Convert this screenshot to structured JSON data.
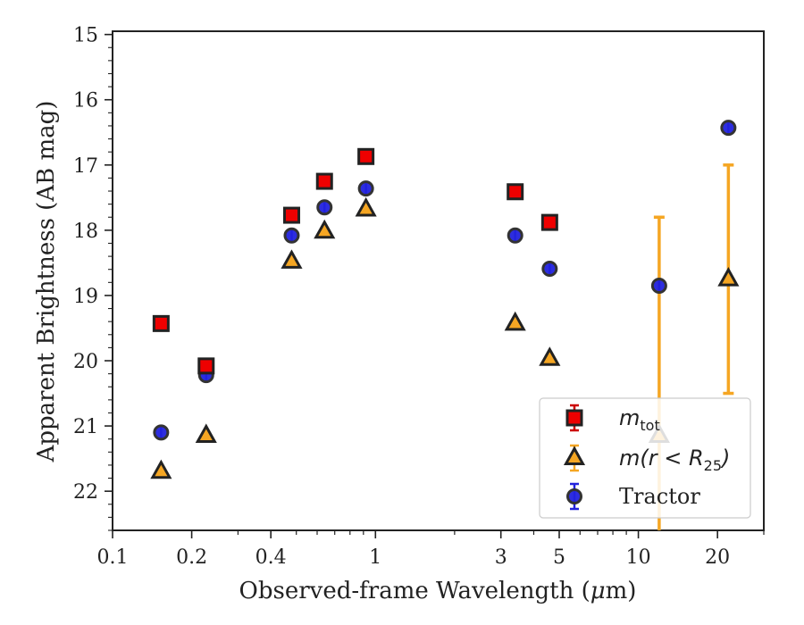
{
  "chart_data": {
    "type": "scatter",
    "title": "",
    "xlabel_main": "Observed-frame Wavelength (",
    "xlabel_unit": "μ",
    "xlabel_unit2": "m)",
    "ylabel": "Apparent Brightness (AB mag)",
    "xscale": "log",
    "xlim": [
      0.1,
      30
    ],
    "ylim": [
      22.6,
      14.95
    ],
    "y_inverted": true,
    "x_ticks": [
      {
        "value": 0.1,
        "label": "0.1"
      },
      {
        "value": 0.2,
        "label": "0.2"
      },
      {
        "value": 0.4,
        "label": "0.4"
      },
      {
        "value": 1,
        "label": "1"
      },
      {
        "value": 3,
        "label": "3"
      },
      {
        "value": 5,
        "label": "5"
      },
      {
        "value": 10,
        "label": "10"
      },
      {
        "value": 20,
        "label": "20"
      }
    ],
    "y_ticks": [
      {
        "value": 15,
        "label": "15"
      },
      {
        "value": 16,
        "label": "16"
      },
      {
        "value": 17,
        "label": "17"
      },
      {
        "value": 18,
        "label": "18"
      },
      {
        "value": 19,
        "label": "19"
      },
      {
        "value": 20,
        "label": "20"
      },
      {
        "value": 21,
        "label": "21"
      },
      {
        "value": 22,
        "label": "22"
      }
    ],
    "legend_position": "lower-right",
    "series": [
      {
        "name": "m_tot",
        "label_main": "m",
        "label_sub": "tot",
        "marker": "square",
        "color": "#ee0000",
        "edge": "#222222",
        "errcolor": "#cc0000",
        "points": [
          {
            "x": 0.153,
            "y": 19.43
          },
          {
            "x": 0.227,
            "y": 20.08
          },
          {
            "x": 0.48,
            "y": 17.77
          },
          {
            "x": 0.64,
            "y": 17.25
          },
          {
            "x": 0.92,
            "y": 16.87
          },
          {
            "x": 3.4,
            "y": 17.41
          },
          {
            "x": 4.6,
            "y": 17.88
          }
        ]
      },
      {
        "name": "m(r<R25)",
        "label_main": "m(r < R",
        "label_sub": "25",
        "label_tail": ")",
        "marker": "triangle",
        "color": "#f5a623",
        "edge": "#222222",
        "errcolor": "#f5a623",
        "points": [
          {
            "x": 0.153,
            "y": 21.7
          },
          {
            "x": 0.227,
            "y": 21.15
          },
          {
            "x": 0.48,
            "y": 18.48
          },
          {
            "x": 0.64,
            "y": 18.02
          },
          {
            "x": 0.92,
            "y": 17.68
          },
          {
            "x": 3.4,
            "y": 19.43
          },
          {
            "x": 4.6,
            "y": 19.97
          },
          {
            "x": 12.0,
            "y": 21.15,
            "err_low": 17.8,
            "err_high": 22.6
          },
          {
            "x": 22.0,
            "y": 18.75,
            "err_low": 17.0,
            "err_high": 20.5
          }
        ]
      },
      {
        "name": "Tractor",
        "label_main": "Tractor",
        "marker": "circle",
        "color": "#2222dd",
        "edge": "#333333",
        "errcolor": "#2222dd",
        "points": [
          {
            "x": 0.153,
            "y": 21.1
          },
          {
            "x": 0.227,
            "y": 20.22
          },
          {
            "x": 0.48,
            "y": 18.08
          },
          {
            "x": 0.64,
            "y": 17.65
          },
          {
            "x": 0.92,
            "y": 17.36
          },
          {
            "x": 3.4,
            "y": 18.08
          },
          {
            "x": 4.6,
            "y": 18.59
          },
          {
            "x": 12.0,
            "y": 18.85
          },
          {
            "x": 22.0,
            "y": 16.43
          }
        ]
      }
    ]
  }
}
